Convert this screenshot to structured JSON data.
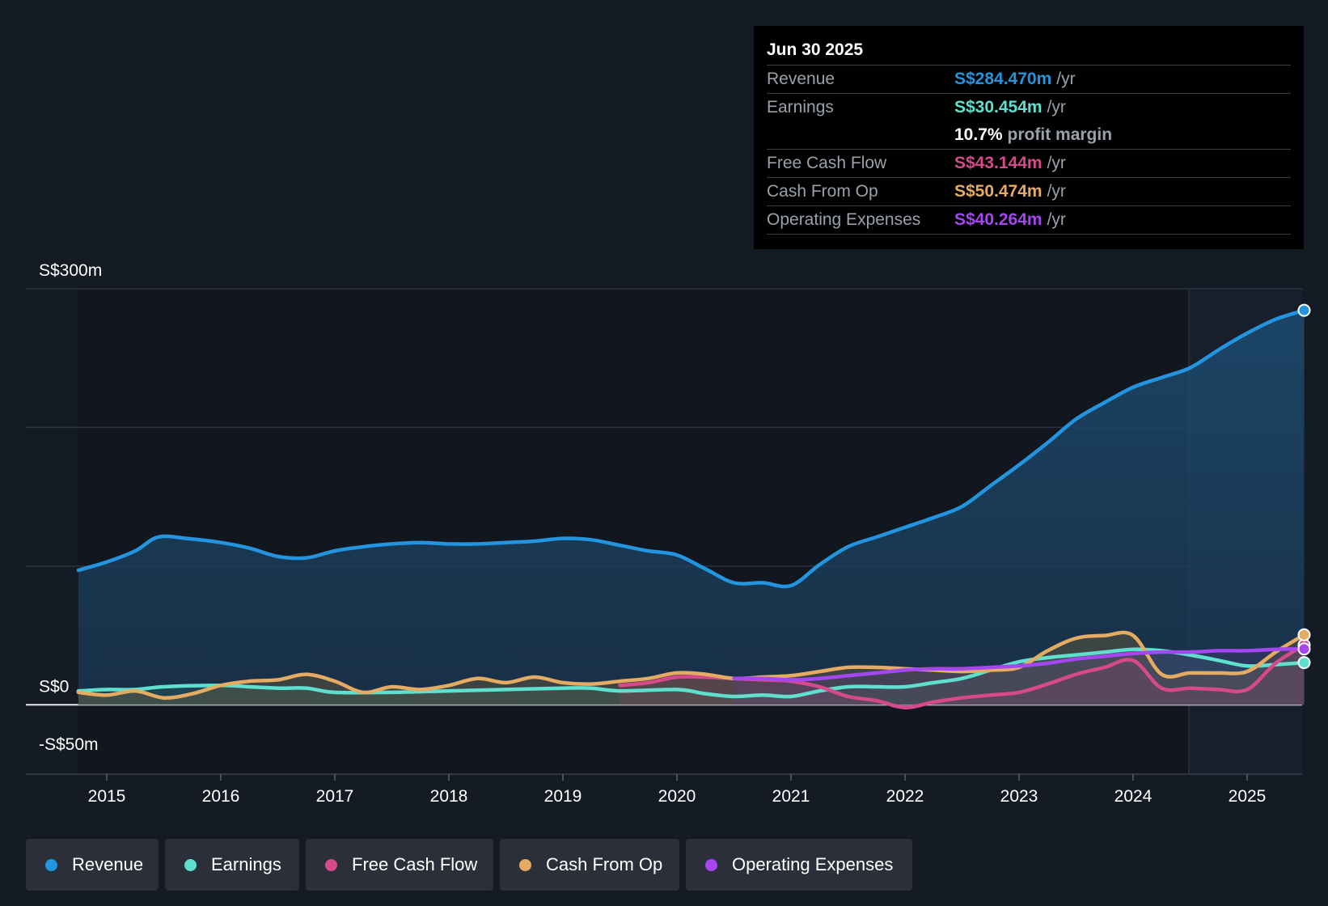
{
  "chart_data": {
    "type": "line",
    "y_axis_labels": [
      "S$300m",
      "S$0",
      "-S$50m"
    ],
    "ylim": [
      -50,
      300
    ],
    "x_ticks": [
      2015,
      2016,
      2017,
      2018,
      2019,
      2020,
      2021,
      2022,
      2023,
      2024,
      2025
    ],
    "series": [
      {
        "name": "Revenue",
        "color": "#2394df",
        "x": [
          2014.75,
          2015.0,
          2015.25,
          2015.45,
          2015.7,
          2016.0,
          2016.25,
          2016.5,
          2016.75,
          2017.0,
          2017.25,
          2017.5,
          2017.75,
          2018.0,
          2018.25,
          2018.5,
          2018.75,
          2019.0,
          2019.25,
          2019.5,
          2019.75,
          2020.0,
          2020.25,
          2020.5,
          2020.75,
          2021.0,
          2021.25,
          2021.5,
          2021.75,
          2022.0,
          2022.25,
          2022.5,
          2022.75,
          2023.0,
          2023.25,
          2023.5,
          2023.75,
          2024.0,
          2024.25,
          2024.5,
          2024.75,
          2025.0,
          2025.25,
          2025.5
        ],
        "values": [
          97,
          103,
          111,
          121,
          120,
          117,
          113,
          107,
          106,
          111,
          114,
          116,
          117,
          116,
          116,
          117,
          118,
          120,
          119,
          115,
          111,
          108,
          98,
          88,
          88,
          86,
          101,
          114,
          121,
          128,
          135,
          143,
          158,
          173,
          189,
          206,
          218,
          229,
          236,
          243,
          256,
          268,
          278,
          284.47
        ]
      },
      {
        "name": "Earnings",
        "color": "#5fe0cf",
        "x": [
          2014.75,
          2015.0,
          2015.25,
          2015.5,
          2016.0,
          2016.25,
          2016.5,
          2016.75,
          2017.0,
          2017.5,
          2018.0,
          2018.5,
          2019.0,
          2019.25,
          2019.5,
          2020.0,
          2020.25,
          2020.5,
          2020.75,
          2021.0,
          2021.25,
          2021.5,
          2021.75,
          2022.0,
          2022.25,
          2022.5,
          2022.75,
          2023.0,
          2023.25,
          2023.5,
          2023.75,
          2024.0,
          2024.25,
          2024.5,
          2024.75,
          2025.0,
          2025.25,
          2025.5
        ],
        "values": [
          10,
          11,
          11,
          13,
          14,
          13,
          12,
          12,
          9,
          9,
          10,
          11,
          12,
          12,
          10,
          11,
          8,
          6,
          7,
          6,
          10,
          13,
          13,
          13,
          16,
          19,
          25,
          31,
          34,
          36,
          38,
          40,
          39,
          36,
          32,
          28,
          29,
          30.454
        ]
      },
      {
        "name": "Free Cash Flow",
        "color": "#d6498a",
        "x": [
          2019.5,
          2019.75,
          2020.0,
          2020.25,
          2020.5,
          2020.75,
          2021.0,
          2021.25,
          2021.5,
          2021.75,
          2022.0,
          2022.25,
          2022.5,
          2022.75,
          2023.0,
          2023.25,
          2023.5,
          2023.75,
          2024.0,
          2024.25,
          2024.5,
          2024.75,
          2025.0,
          2025.25,
          2025.5
        ],
        "values": [
          14,
          16,
          20,
          20,
          19,
          18,
          17,
          13,
          6,
          3,
          -2,
          2,
          5,
          7,
          9,
          15,
          22,
          27,
          32,
          12,
          12,
          11,
          11,
          30,
          43.144
        ]
      },
      {
        "name": "Cash From Op",
        "color": "#e5ab62",
        "x": [
          2014.75,
          2015.0,
          2015.25,
          2015.5,
          2015.75,
          2016.0,
          2016.25,
          2016.5,
          2016.75,
          2017.0,
          2017.25,
          2017.5,
          2017.75,
          2018.0,
          2018.25,
          2018.5,
          2018.75,
          2019.0,
          2019.25,
          2019.5,
          2019.75,
          2020.0,
          2020.25,
          2020.5,
          2020.75,
          2021.0,
          2021.25,
          2021.5,
          2021.75,
          2022.0,
          2022.25,
          2022.5,
          2022.75,
          2023.0,
          2023.25,
          2023.5,
          2023.75,
          2024.0,
          2024.25,
          2024.5,
          2024.75,
          2025.0,
          2025.25,
          2025.5
        ],
        "values": [
          9,
          7,
          10,
          5,
          8,
          14,
          17,
          18,
          22,
          17,
          9,
          13,
          11,
          14,
          19,
          16,
          20,
          16,
          15,
          17,
          19,
          23,
          22,
          19,
          20,
          21,
          24,
          27,
          27,
          26,
          25,
          24,
          25,
          27,
          39,
          48,
          50,
          50,
          22,
          23,
          23,
          24,
          38,
          50.474
        ]
      },
      {
        "name": "Operating Expenses",
        "color": "#a547f0",
        "x": [
          2020.5,
          2020.75,
          2021.0,
          2021.25,
          2021.5,
          2021.75,
          2022.0,
          2022.25,
          2022.5,
          2022.75,
          2023.0,
          2023.25,
          2023.5,
          2023.75,
          2024.0,
          2024.25,
          2024.5,
          2024.75,
          2025.0,
          2025.25,
          2025.5
        ],
        "values": [
          19,
          19,
          18,
          19,
          21,
          23,
          25,
          26,
          26,
          27,
          28,
          30,
          33,
          35,
          37,
          38,
          38,
          39,
          39,
          40,
          40.264
        ]
      }
    ],
    "tooltip": {
      "date": "Jun 30 2025",
      "rows": [
        {
          "label": "Revenue",
          "value": "S$284.470m",
          "unit": "/yr",
          "color": "#2394df"
        },
        {
          "label": "Earnings",
          "value": "S$30.454m",
          "unit": "/yr",
          "color": "#5fe0cf"
        },
        {
          "label": "",
          "value": "10.7%",
          "unit": "profit margin",
          "color": "#ffffff"
        },
        {
          "label": "Free Cash Flow",
          "value": "S$43.144m",
          "unit": "/yr",
          "color": "#d6498a"
        },
        {
          "label": "Cash From Op",
          "value": "S$50.474m",
          "unit": "/yr",
          "color": "#e5ab62"
        },
        {
          "label": "Operating Expenses",
          "value": "S$40.264m",
          "unit": "/yr",
          "color": "#a547f0"
        }
      ]
    },
    "legend": [
      {
        "name": "Revenue",
        "color": "#2394df"
      },
      {
        "name": "Earnings",
        "color": "#5fe0cf"
      },
      {
        "name": "Free Cash Flow",
        "color": "#d6498a"
      },
      {
        "name": "Cash From Op",
        "color": "#e5ab62"
      },
      {
        "name": "Operating Expenses",
        "color": "#a547f0"
      }
    ]
  }
}
